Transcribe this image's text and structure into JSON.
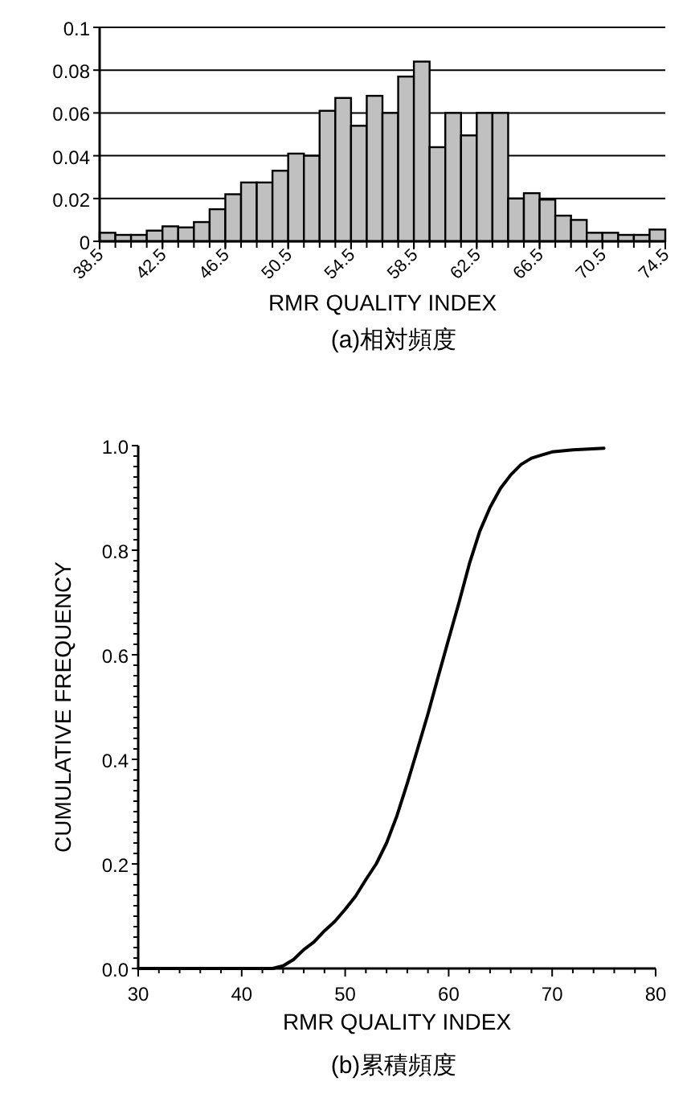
{
  "chart_data": [
    {
      "type": "histogram",
      "xlabel": "RMR QUALITY INDEX",
      "annotations": [
        "(a)相対頻度"
      ],
      "color": "#c0c0c0",
      "bins": [
        38.5,
        39.5,
        40.5,
        41.5,
        42.5,
        43.5,
        44.5,
        45.5,
        46.5,
        47.5,
        48.5,
        49.5,
        50.5,
        51.5,
        52.5,
        53.5,
        54.5,
        55.5,
        56.5,
        57.5,
        58.5,
        59.5,
        60.5,
        61.5,
        62.5,
        63.5,
        64.5,
        65.5,
        66.5,
        67.5,
        68.5,
        69.5,
        70.5,
        71.5,
        72.5,
        73.5,
        74.5
      ],
      "values": [
        0.004,
        0.003,
        0.003,
        0.005,
        0.007,
        0.0065,
        0.009,
        0.015,
        0.022,
        0.0275,
        0.0275,
        0.033,
        0.041,
        0.04,
        0.061,
        0.067,
        0.054,
        0.068,
        0.06,
        0.077,
        0.084,
        0.044,
        0.06,
        0.0495,
        0.06,
        0.06,
        0.02,
        0.0225,
        0.0195,
        0.012,
        0.01,
        0.004,
        0.004,
        0.003,
        0.003,
        0.0055
      ],
      "xlim": [
        38.5,
        74.5
      ],
      "xticks": [
        38.5,
        42.5,
        46.5,
        50.5,
        54.5,
        58.5,
        62.5,
        66.5,
        70.5,
        74.5
      ],
      "ylim": [
        0,
        0.1
      ],
      "yticks": [
        0,
        0.02,
        0.04,
        0.06,
        0.08,
        0.1
      ],
      "grid": "y"
    },
    {
      "type": "line",
      "xlabel": "RMR QUALITY INDEX",
      "ylabel": "CUMULATIVE FREQUENCY",
      "annotations": [
        "(b)累積頻度"
      ],
      "color": "#000000",
      "marker": "none",
      "x": [
        30,
        43,
        44,
        45,
        46,
        47,
        48,
        49,
        50,
        51,
        52,
        53,
        54,
        55,
        56,
        57,
        58,
        59,
        60,
        61,
        62,
        63,
        64,
        65,
        66,
        67,
        68,
        69,
        70,
        72,
        75
      ],
      "values": [
        0,
        0,
        0.005,
        0.017,
        0.036,
        0.051,
        0.072,
        0.09,
        0.113,
        0.138,
        0.17,
        0.2,
        0.24,
        0.292,
        0.354,
        0.42,
        0.487,
        0.559,
        0.63,
        0.7,
        0.774,
        0.836,
        0.882,
        0.918,
        0.944,
        0.964,
        0.976,
        0.982,
        0.988,
        0.992,
        0.995
      ],
      "xlim": [
        30,
        80
      ],
      "xticks": [
        30,
        40,
        50,
        60,
        70,
        80
      ],
      "ylim": [
        0,
        1
      ],
      "yticks": [
        {
          "value": 0,
          "label": "0.0"
        },
        {
          "value": 0.2,
          "label": "0.2"
        },
        {
          "value": 0.4,
          "label": "0.4"
        },
        {
          "value": 0.6,
          "label": "0.6"
        },
        {
          "value": 0.8,
          "label": "0.8"
        },
        {
          "value": 1,
          "label": "1.0"
        }
      ]
    }
  ]
}
